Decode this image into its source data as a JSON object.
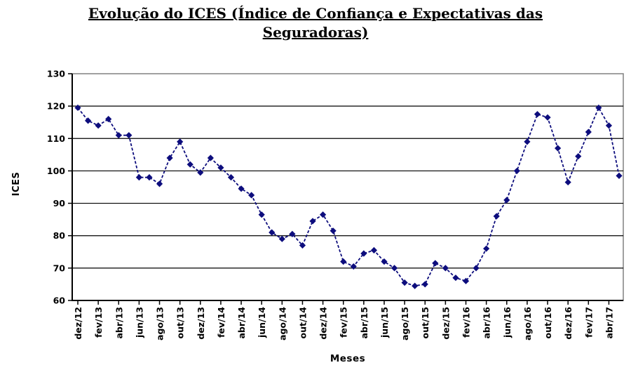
{
  "title": {
    "line1": "Evolução do ICES (Índice de Confiança e Expectativas das",
    "line2": "Seguradoras)",
    "full": "Evolução do ICES (Índice de Confiança e Expectativas das Seguradoras)"
  },
  "chart_data": {
    "type": "line",
    "title": "Evolução do ICES (Índice de Confiança e Expectativas das Seguradoras)",
    "xlabel": "Meses",
    "ylabel": "ICES",
    "ylim": [
      60,
      130
    ],
    "yticks": [
      60,
      70,
      80,
      90,
      100,
      110,
      120,
      130
    ],
    "grid": true,
    "legend": false,
    "line_style": "dashed",
    "marker": "diamond",
    "x_tick_interval": 2,
    "x": [
      "dez/12",
      "jan/13",
      "fev/13",
      "mar/13",
      "abr/13",
      "mai/13",
      "jun/13",
      "jul/13",
      "ago/13",
      "set/13",
      "out/13",
      "nov/13",
      "dez/13",
      "jan/14",
      "fev/14",
      "mar/14",
      "abr/14",
      "mai/14",
      "jun/14",
      "jul/14",
      "ago/14",
      "set/14",
      "out/14",
      "nov/14",
      "dez/14",
      "jan/15",
      "fev/15",
      "mar/15",
      "abr/15",
      "mai/15",
      "jun/15",
      "jul/15",
      "ago/15",
      "set/15",
      "out/15",
      "nov/15",
      "dez/15",
      "jan/16",
      "fev/16",
      "mar/16",
      "abr/16",
      "mai/16",
      "jun/16",
      "jul/16",
      "ago/16",
      "set/16",
      "out/16",
      "nov/16",
      "dez/16",
      "jan/17",
      "fev/17",
      "mar/17",
      "abr/17",
      "mai/17"
    ],
    "values": [
      119.5,
      115.5,
      114,
      116,
      111,
      111,
      98,
      98,
      96,
      104,
      109,
      102,
      99.5,
      104,
      101,
      98,
      94.5,
      92.5,
      86.5,
      81,
      79,
      80.5,
      77,
      84.5,
      86.5,
      81.5,
      72,
      70.5,
      74.5,
      75.5,
      72,
      70,
      65.5,
      64.5,
      65,
      71.5,
      70,
      67,
      66,
      70,
      76,
      86,
      91,
      100,
      109,
      117.5,
      116.5,
      107,
      96.5,
      104.5,
      112,
      119.5,
      114,
      98.5
    ]
  },
  "colors": {
    "line": "#0d0d7d",
    "gridline": "#000000",
    "plot_border": "#808080",
    "axis": "#000000",
    "text": "#000000",
    "background": "#ffffff"
  }
}
